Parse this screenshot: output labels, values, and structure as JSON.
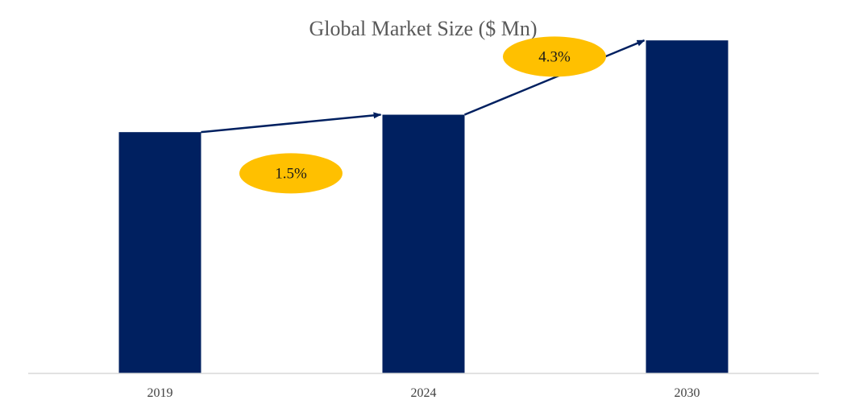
{
  "chart_data": {
    "type": "bar",
    "title": "Global Market Size ($ Mn)",
    "xlabel": "",
    "ylabel": "",
    "categories": [
      "2019",
      "2024",
      "2030"
    ],
    "values": [
      263,
      282,
      363
    ],
    "ylim": [
      0,
      400
    ],
    "grid": false,
    "legend": "none",
    "bar_color": "#002060",
    "arrow_color": "#002060",
    "annotations": [
      {
        "text": "1.5%",
        "from": "2019",
        "to": "2024",
        "color": "#FFC000"
      },
      {
        "text": "4.3%",
        "from": "2024",
        "to": "2030",
        "color": "#FFC000"
      }
    ]
  }
}
